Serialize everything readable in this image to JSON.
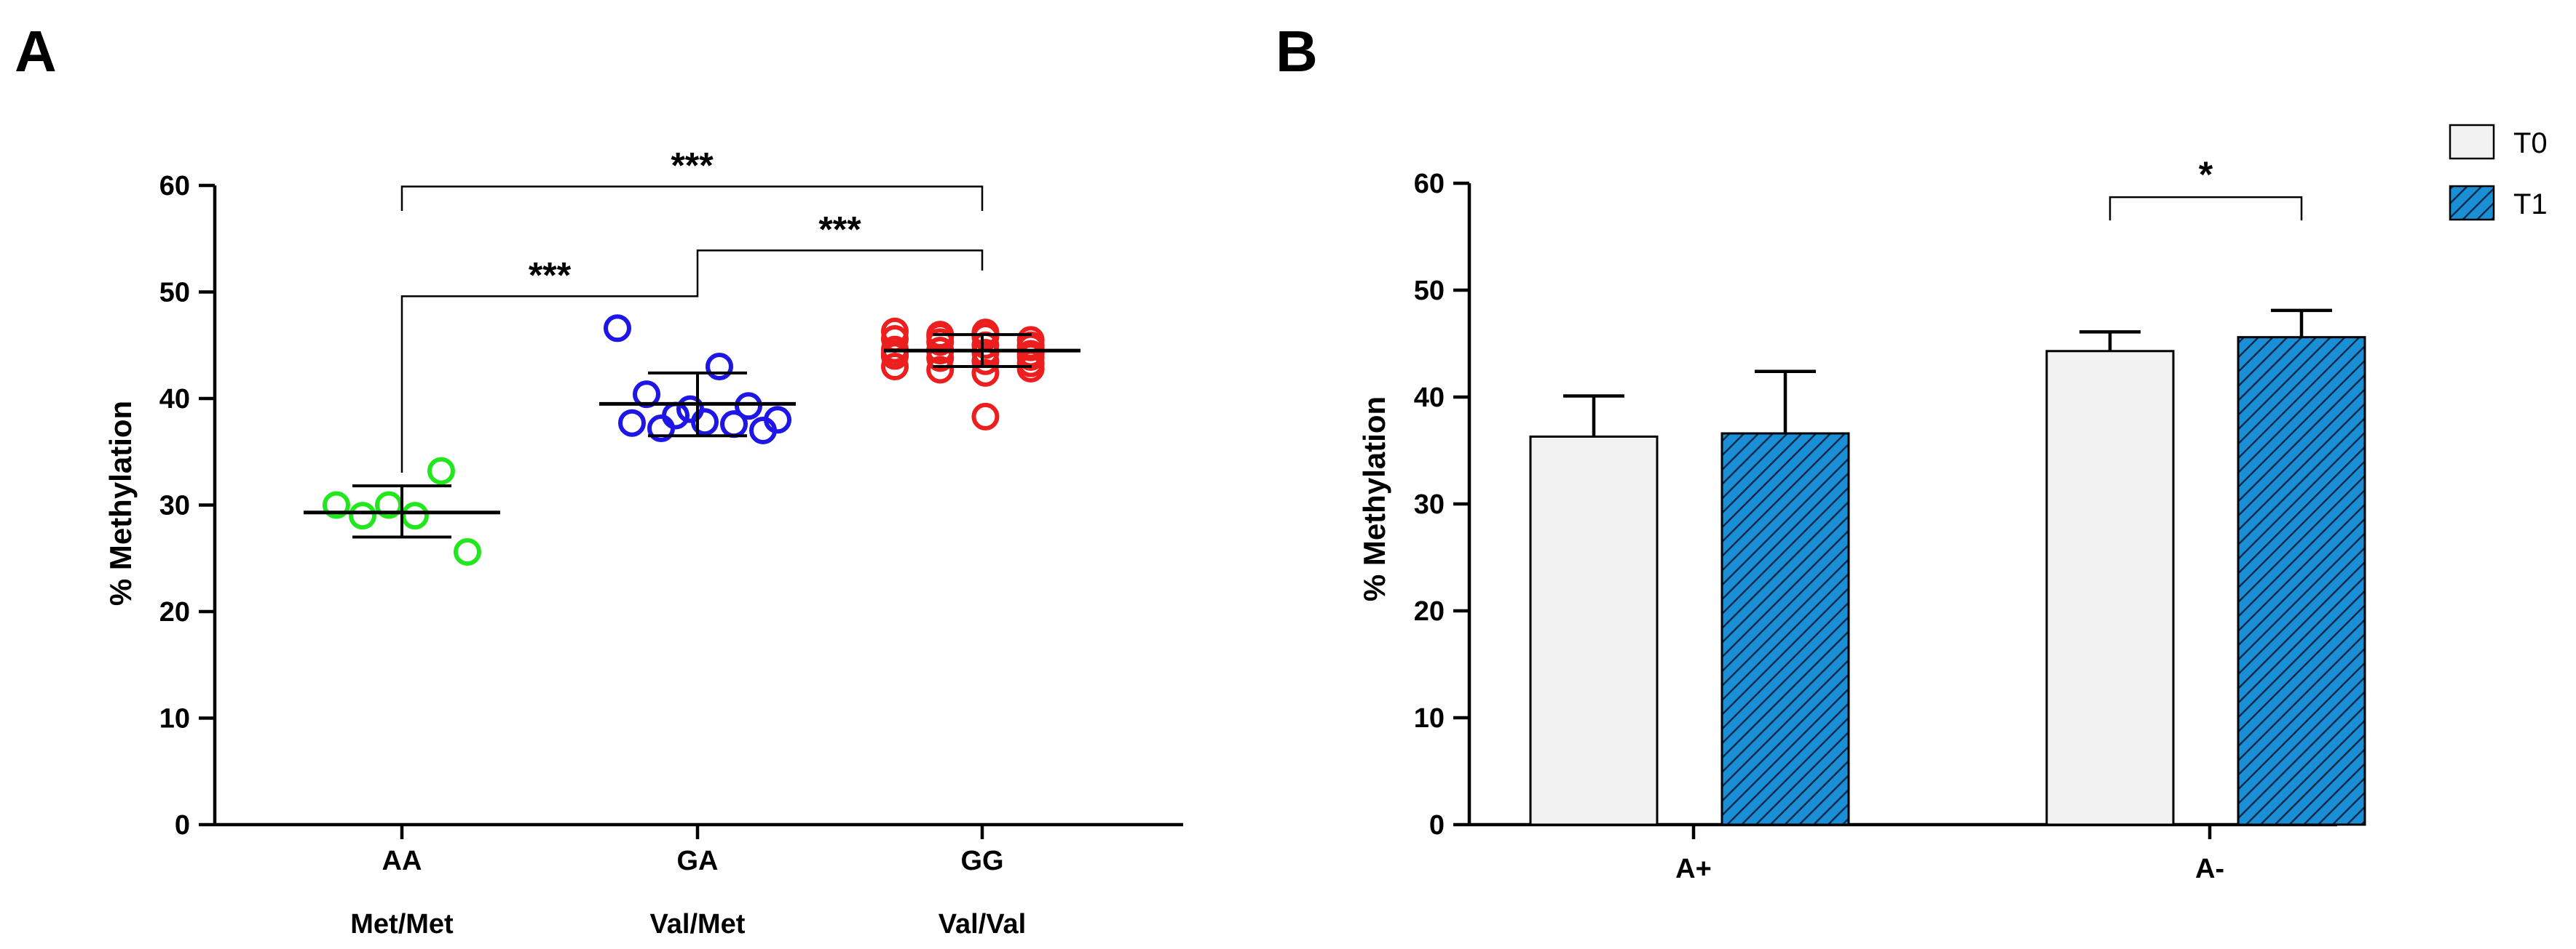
{
  "chart_data": [
    {
      "panel": "A",
      "type": "scatter",
      "ylabel": "% Methylation",
      "ylim": [
        0,
        60
      ],
      "yticks": [
        0,
        10,
        20,
        30,
        40,
        50,
        60
      ],
      "groups": [
        {
          "genotype": "AA",
          "allele": "Met/Met",
          "color": "#22e61e",
          "mean": 29.3,
          "sd_low": 27.0,
          "sd_high": 31.8,
          "points": [
            30.0,
            29.0,
            30.0,
            29.0,
            33.2,
            25.6
          ]
        },
        {
          "genotype": "GA",
          "allele": "Val/Met",
          "color": "#1e16e6",
          "mean": 39.5,
          "sd_low": 36.5,
          "sd_high": 42.4,
          "points": [
            46.6,
            43.0,
            40.4,
            39.3,
            38.4,
            38.0,
            37.8,
            37.7,
            37.6,
            37.2,
            37.0,
            39.0
          ]
        },
        {
          "genotype": "GG",
          "allele": "Val/Val",
          "color": "#ec1e1e",
          "mean": 44.5,
          "sd_low": 43.0,
          "sd_high": 46.0,
          "points": [
            46.3,
            46.0,
            45.8,
            45.5,
            45.6,
            45.3,
            45.0,
            44.8,
            44.6,
            44.5,
            44.3,
            44.2,
            44.0,
            43.8,
            43.5,
            43.3,
            43.0,
            42.7,
            42.4,
            42.8,
            44.2,
            44.5,
            38.3,
            45.0,
            44.0,
            45.8,
            46.2,
            43.9
          ]
        }
      ],
      "significance": [
        {
          "from": "AA",
          "to": "GA",
          "label": "***",
          "y": 49.6
        },
        {
          "from": "GA",
          "to": "GG",
          "label": "***",
          "y": 53.9
        },
        {
          "from": "AA",
          "to": "GG",
          "label": "***",
          "y": 59.9
        }
      ]
    },
    {
      "panel": "B",
      "type": "bar",
      "ylabel": "% Methylation",
      "ylim": [
        0,
        60
      ],
      "yticks": [
        0,
        10,
        20,
        30,
        40,
        50,
        60
      ],
      "categories": [
        "A+",
        "A-"
      ],
      "series": [
        {
          "name": "T0",
          "fill": "#f2f2f2",
          "pattern": "none",
          "values": [
            36.3,
            44.3
          ],
          "err": [
            3.8,
            1.8
          ]
        },
        {
          "name": "T1",
          "fill": "#1a8fd6",
          "pattern": "diagonal-hatch",
          "values": [
            36.6,
            45.6
          ],
          "err": [
            5.8,
            2.5
          ]
        }
      ],
      "significance": [
        {
          "category": "A-",
          "from": "T0",
          "to": "T1",
          "label": "*",
          "y": 58.7
        }
      ],
      "legend": "top-right"
    }
  ]
}
